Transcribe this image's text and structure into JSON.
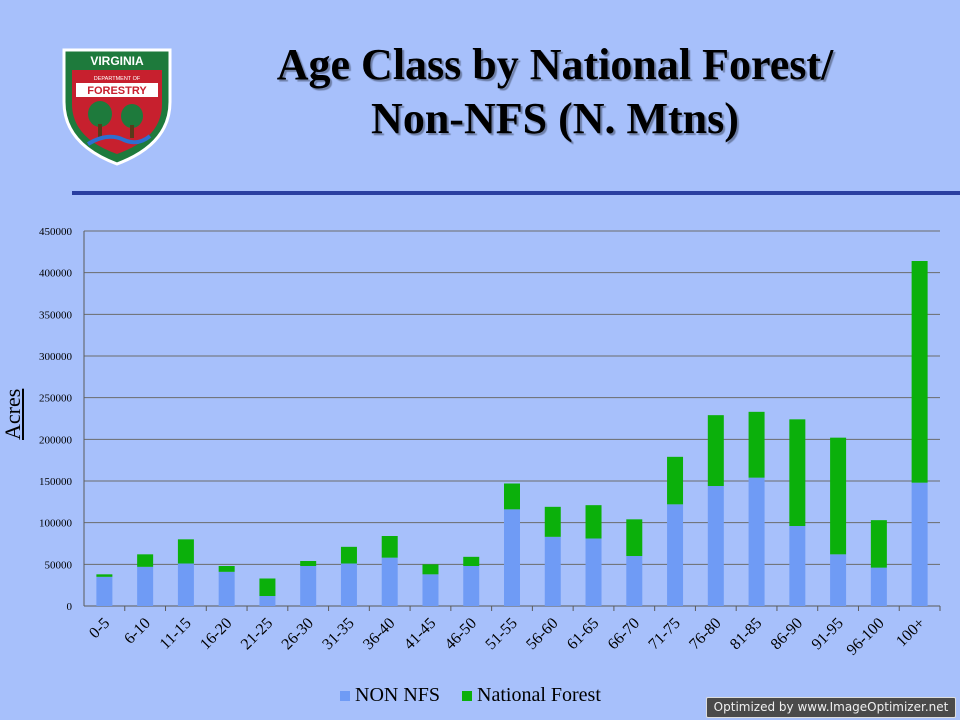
{
  "logo": {
    "top_text": "VIRGINIA",
    "middle_text": "DEPARTMENT OF",
    "bottom_text": "FORESTRY"
  },
  "slide": {
    "title_line1": "Age Class by  National Forest/",
    "title_line2": "Non-NFS (N. Mtns)"
  },
  "watermark": "Optimized by www.ImageOptimizer.net",
  "colors": {
    "non_nfs": "#6f9bf5",
    "national_forest": "#0bb00b",
    "background": "#a7c0fb",
    "divider": "#2a3fa0"
  },
  "chart_data": {
    "type": "bar",
    "stacked": true,
    "ylabel": "Acres",
    "ylim": [
      0,
      450000
    ],
    "yticks": [
      0,
      50000,
      100000,
      150000,
      200000,
      250000,
      300000,
      350000,
      400000,
      450000
    ],
    "grid": true,
    "legend_position": "bottom",
    "categories": [
      "0-5",
      "6-10",
      "11-15",
      "16-20",
      "21-25",
      "26-30",
      "31-35",
      "36-40",
      "41-45",
      "46-50",
      "51-55",
      "56-60",
      "61-65",
      "66-70",
      "71-75",
      "76-80",
      "81-85",
      "86-90",
      "91-95",
      "96-100",
      "100+"
    ],
    "series": [
      {
        "name": "NON NFS",
        "values": [
          35000,
          47000,
          51000,
          41000,
          12000,
          48000,
          51000,
          58000,
          38000,
          48000,
          116000,
          83000,
          81000,
          60000,
          122000,
          144000,
          154000,
          96000,
          62000,
          46000,
          148000
        ]
      },
      {
        "name": "National Forest",
        "values": [
          3000,
          15000,
          29000,
          7000,
          21000,
          6000,
          20000,
          26000,
          12000,
          11000,
          31000,
          36000,
          40000,
          44000,
          57000,
          85000,
          79000,
          128000,
          140000,
          57000,
          266000
        ]
      }
    ]
  }
}
